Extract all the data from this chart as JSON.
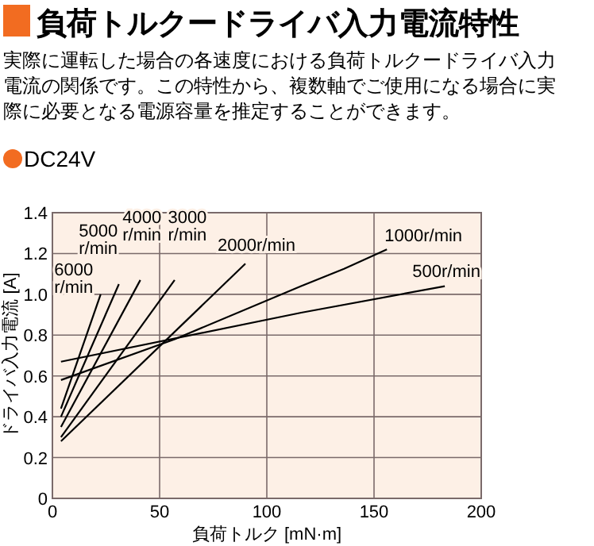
{
  "chart_data": {
    "type": "line",
    "title": "負荷トルクードライバ入力電流特性",
    "subtitle": "実際に運転した場合の各速度における負荷トルクードライバ入力電流の関係です。この特性から、複数軸でご使用になる場合に実際に必要となる電源容量を推定することができます。",
    "annotations": [
      "DC24V"
    ],
    "xlabel": "負荷トルク [mN·m]",
    "ylabel": "ドライバ入力電流 [A]",
    "xlim": [
      0,
      200
    ],
    "xticks": [
      0,
      50,
      100,
      150,
      200
    ],
    "ylim": [
      0,
      1.4
    ],
    "yticks": [
      0,
      0.2,
      0.4,
      0.6,
      0.8,
      {
        "value": 1,
        "label": "1.0"
      },
      1.2,
      1.4
    ],
    "grid": true,
    "line_style": "solid",
    "marker": "none",
    "series": [
      {
        "name": "6000 r/min",
        "color": "#000000",
        "x": [
          4,
          22.5
        ],
        "values": [
          0.44,
          1.0
        ]
      },
      {
        "name": "5000 r/min",
        "color": "#000000",
        "x": [
          4,
          31
        ],
        "values": [
          0.4,
          1.05
        ]
      },
      {
        "name": "4000 r/min",
        "color": "#000000",
        "x": [
          4,
          41
        ],
        "values": [
          0.35,
          1.07
        ]
      },
      {
        "name": "3000 r/min",
        "color": "#000000",
        "x": [
          4,
          57
        ],
        "values": [
          0.3,
          1.07
        ]
      },
      {
        "name": "2000r/min",
        "color": "#000000",
        "x": [
          4,
          90
        ],
        "values": [
          0.28,
          1.15
        ]
      },
      {
        "name": "1000r/min",
        "color": "#000000",
        "x": [
          4,
          57,
          116,
          136,
          156
        ],
        "values": [
          0.58,
          0.78,
          1.04,
          1.125,
          1.22
        ]
      },
      {
        "name": "500r/min",
        "color": "#000000",
        "x": [
          4,
          116,
          183
        ],
        "values": [
          0.67,
          0.91,
          1.04
        ]
      }
    ]
  }
}
